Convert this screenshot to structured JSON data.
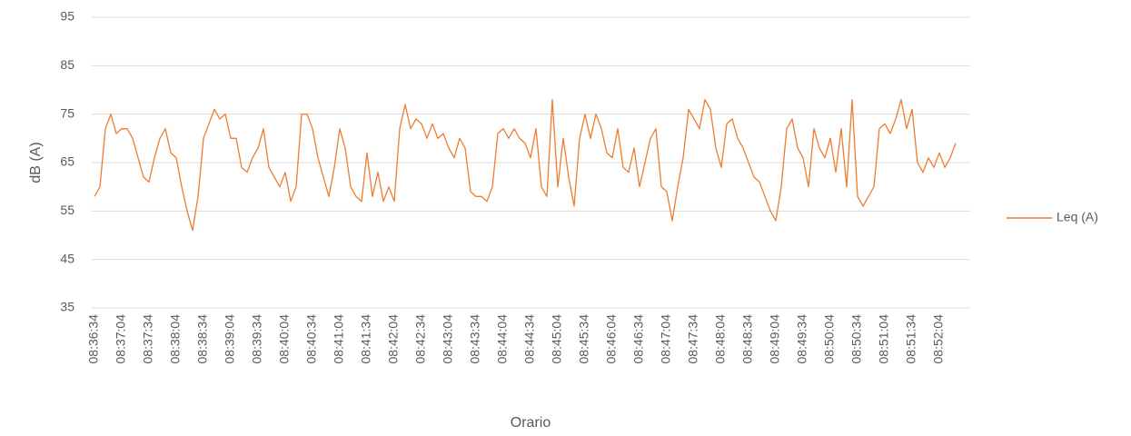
{
  "chart_data": {
    "type": "line",
    "y_label": "dB (A)",
    "x_label": "Orario",
    "categories": [
      "08:36:34",
      null,
      null,
      null,
      null,
      "08:37:04",
      null,
      null,
      null,
      null,
      "08:37:34",
      null,
      null,
      null,
      null,
      "08:38:04",
      null,
      null,
      null,
      null,
      "08:38:34",
      null,
      null,
      null,
      null,
      "08:39:04",
      null,
      null,
      null,
      null,
      "08:39:34",
      null,
      null,
      null,
      null,
      "08:40:04",
      null,
      null,
      null,
      null,
      "08:40:34",
      null,
      null,
      null,
      null,
      "08:41:04",
      null,
      null,
      null,
      null,
      "08:41:34",
      null,
      null,
      null,
      null,
      "08:42:04",
      null,
      null,
      null,
      null,
      "08:42:34",
      null,
      null,
      null,
      null,
      "08:43:04",
      null,
      null,
      null,
      null,
      "08:43:34",
      null,
      null,
      null,
      null,
      "08:44:04",
      null,
      null,
      null,
      null,
      "08:44:34",
      null,
      null,
      null,
      null,
      "08:45:04",
      null,
      null,
      null,
      null,
      "08:45:34",
      null,
      null,
      null,
      null,
      "08:46:04",
      null,
      null,
      null,
      null,
      "08:46:34",
      null,
      null,
      null,
      null,
      "08:47:04",
      null,
      null,
      null,
      null,
      "08:47:34",
      null,
      null,
      null,
      null,
      "08:48:04",
      null,
      null,
      null,
      null,
      "08:48:34",
      null,
      null,
      null,
      null,
      "08:49:04",
      null,
      null,
      null,
      null,
      "08:49:34",
      null,
      null,
      null,
      null,
      "08:50:04",
      null,
      null,
      null,
      null,
      "08:50:34",
      null,
      null,
      null,
      null,
      "08:51:04",
      null,
      null,
      null,
      null,
      "08:51:34",
      null,
      null,
      null,
      null,
      "08:52:04",
      null,
      null,
      null
    ],
    "series": [
      {
        "name": "Leq (A)",
        "color": "#ed7d31",
        "values": [
          58,
          60,
          72,
          75,
          71,
          72,
          72,
          70,
          66,
          62,
          61,
          66,
          70,
          72,
          67,
          66,
          60,
          55,
          51,
          58,
          70,
          73,
          76,
          74,
          75,
          70,
          70,
          64,
          63,
          66,
          68,
          72,
          64,
          62,
          60,
          63,
          57,
          60,
          75,
          75,
          72,
          66,
          62,
          58,
          64,
          72,
          68,
          60,
          58,
          57,
          67,
          58,
          63,
          57,
          60,
          57,
          72,
          77,
          72,
          74,
          73,
          70,
          73,
          70,
          71,
          68,
          66,
          70,
          68,
          59,
          58,
          58,
          57,
          60,
          71,
          72,
          70,
          72,
          70,
          69,
          66,
          72,
          60,
          58,
          78,
          60,
          70,
          62,
          56,
          70,
          75,
          70,
          75,
          72,
          67,
          66,
          72,
          64,
          63,
          68,
          60,
          65,
          70,
          72,
          60,
          59,
          53,
          60,
          66,
          76,
          74,
          72,
          78,
          76,
          68,
          64,
          73,
          74,
          70,
          68,
          65,
          62,
          61,
          58,
          55,
          53,
          60,
          72,
          74,
          68,
          66,
          60,
          72,
          68,
          66,
          70,
          63,
          72,
          60,
          78,
          58,
          56,
          58,
          60,
          72,
          73,
          71,
          74,
          78,
          72,
          76,
          65,
          63,
          66,
          64,
          67,
          64,
          66,
          69
        ]
      }
    ],
    "ylim": [
      35,
      95
    ],
    "yticks": [
      35,
      45,
      55,
      65,
      75,
      85,
      95
    ],
    "grid": true,
    "legend": "right"
  }
}
